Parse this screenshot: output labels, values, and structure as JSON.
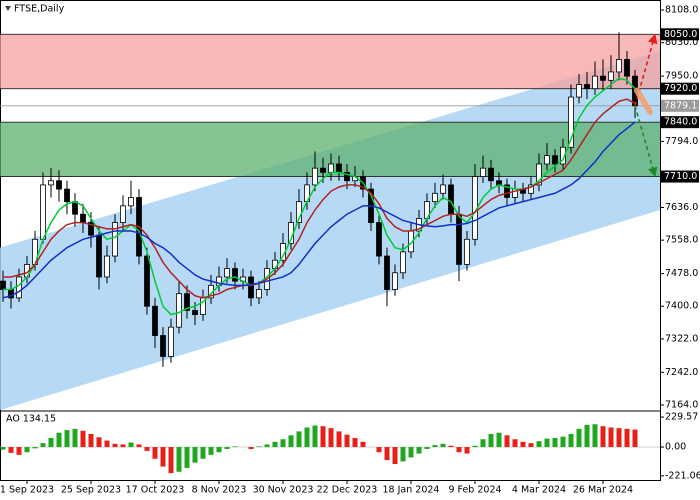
{
  "chart_data": {
    "type": "candlestick",
    "title": "FTSE,Daily",
    "categories": [
      null,
      null,
      null,
      "1 Sep 2023",
      null,
      null,
      null,
      null,
      null,
      null,
      null,
      "25 Sep 2023",
      null,
      null,
      null,
      null,
      null,
      null,
      null,
      "17 Oct 2023",
      null,
      null,
      null,
      null,
      null,
      null,
      null,
      "8 Nov 2023",
      null,
      null,
      null,
      null,
      null,
      null,
      null,
      "30 Nov 2023",
      null,
      null,
      null,
      null,
      null,
      null,
      null,
      "22 Dec 2023",
      null,
      null,
      null,
      null,
      null,
      null,
      null,
      "18 Jan 2024",
      null,
      null,
      null,
      null,
      null,
      null,
      null,
      "9 Feb 2024",
      null,
      null,
      null,
      null,
      null,
      null,
      null,
      "4 Mar 2024",
      null,
      null,
      null,
      null,
      null,
      null,
      null,
      "26 Mar 2024",
      null,
      null,
      null,
      null
    ],
    "ohlc": [
      [
        7460,
        7485,
        7410,
        7440
      ],
      [
        7440,
        7460,
        7395,
        7420
      ],
      [
        7420,
        7490,
        7410,
        7470
      ],
      [
        7470,
        7520,
        7455,
        7500
      ],
      [
        7500,
        7580,
        7485,
        7560
      ],
      [
        7560,
        7720,
        7550,
        7690
      ],
      [
        7690,
        7730,
        7660,
        7700
      ],
      [
        7700,
        7725,
        7650,
        7680
      ],
      [
        7680,
        7700,
        7620,
        7650
      ],
      [
        7650,
        7670,
        7590,
        7620
      ],
      [
        7620,
        7645,
        7575,
        7600
      ],
      [
        7600,
        7625,
        7540,
        7570
      ],
      [
        7570,
        7590,
        7440,
        7470
      ],
      [
        7470,
        7545,
        7455,
        7520
      ],
      [
        7520,
        7620,
        7505,
        7600
      ],
      [
        7600,
        7665,
        7580,
        7640
      ],
      [
        7640,
        7700,
        7620,
        7660
      ],
      [
        7660,
        7680,
        7500,
        7520
      ],
      [
        7520,
        7540,
        7380,
        7400
      ],
      [
        7400,
        7420,
        7300,
        7330
      ],
      [
        7330,
        7350,
        7255,
        7280
      ],
      [
        7280,
        7370,
        7265,
        7350
      ],
      [
        7350,
        7460,
        7335,
        7430
      ],
      [
        7430,
        7450,
        7370,
        7390
      ],
      [
        7390,
        7410,
        7355,
        7380
      ],
      [
        7380,
        7440,
        7365,
        7420
      ],
      [
        7420,
        7475,
        7405,
        7450
      ],
      [
        7450,
        7495,
        7435,
        7470
      ],
      [
        7470,
        7515,
        7455,
        7490
      ],
      [
        7490,
        7505,
        7440,
        7460
      ],
      [
        7460,
        7490,
        7440,
        7470
      ],
      [
        7470,
        7485,
        7400,
        7420
      ],
      [
        7420,
        7460,
        7405,
        7440
      ],
      [
        7440,
        7510,
        7425,
        7490
      ],
      [
        7490,
        7530,
        7475,
        7510
      ],
      [
        7510,
        7575,
        7495,
        7550
      ],
      [
        7550,
        7625,
        7535,
        7600
      ],
      [
        7600,
        7680,
        7585,
        7650
      ],
      [
        7650,
        7720,
        7630,
        7690
      ],
      [
        7690,
        7770,
        7675,
        7730
      ],
      [
        7730,
        7755,
        7695,
        7720
      ],
      [
        7720,
        7765,
        7700,
        7740
      ],
      [
        7740,
        7760,
        7700,
        7720
      ],
      [
        7720,
        7740,
        7680,
        7700
      ],
      [
        7700,
        7735,
        7685,
        7710
      ],
      [
        7710,
        7725,
        7660,
        7680
      ],
      [
        7680,
        7695,
        7580,
        7600
      ],
      [
        7600,
        7620,
        7500,
        7520
      ],
      [
        7520,
        7540,
        7400,
        7440
      ],
      [
        7440,
        7500,
        7425,
        7480
      ],
      [
        7480,
        7550,
        7465,
        7530
      ],
      [
        7530,
        7600,
        7515,
        7580
      ],
      [
        7580,
        7630,
        7565,
        7610
      ],
      [
        7610,
        7670,
        7595,
        7650
      ],
      [
        7650,
        7695,
        7635,
        7670
      ],
      [
        7670,
        7715,
        7655,
        7690
      ],
      [
        7690,
        7705,
        7600,
        7620
      ],
      [
        7620,
        7640,
        7460,
        7500
      ],
      [
        7500,
        7580,
        7485,
        7560
      ],
      [
        7560,
        7740,
        7545,
        7710
      ],
      [
        7710,
        7760,
        7695,
        7730
      ],
      [
        7730,
        7750,
        7680,
        7700
      ],
      [
        7700,
        7720,
        7670,
        7690
      ],
      [
        7690,
        7705,
        7640,
        7660
      ],
      [
        7660,
        7700,
        7645,
        7680
      ],
      [
        7680,
        7695,
        7650,
        7670
      ],
      [
        7670,
        7710,
        7655,
        7690
      ],
      [
        7690,
        7765,
        7675,
        7740
      ],
      [
        7740,
        7790,
        7725,
        7760
      ],
      [
        7760,
        7775,
        7720,
        7740
      ],
      [
        7740,
        7800,
        7725,
        7780
      ],
      [
        7780,
        7930,
        7765,
        7900
      ],
      [
        7900,
        7955,
        7885,
        7930
      ],
      [
        7930,
        7960,
        7895,
        7920
      ],
      [
        7920,
        7985,
        7905,
        7950
      ],
      [
        7950,
        7990,
        7915,
        7940
      ],
      [
        7940,
        8000,
        7920,
        7960
      ],
      [
        7960,
        8055,
        7940,
        7990
      ],
      [
        7990,
        8010,
        7930,
        7950
      ],
      [
        7950,
        7965,
        7850,
        7879.1
      ]
    ],
    "candle_color": "#000000",
    "ylim": [
      7152,
      8132
    ],
    "yticks": [
      {
        "value": 8108,
        "label": "8108.0"
      },
      {
        "value": 8030,
        "label": "8030.0"
      },
      {
        "value": 7950,
        "label": "7950.0"
      },
      {
        "value": 7794,
        "label": "7794.0"
      },
      {
        "value": 7636,
        "label": "7636.0"
      },
      {
        "value": 7558,
        "label": "7558.0"
      },
      {
        "value": 7478,
        "label": "7478.0"
      },
      {
        "value": 7400,
        "label": "7400.0"
      },
      {
        "value": 7322,
        "label": "7322.0"
      },
      {
        "value": 7242,
        "label": "7242.0"
      },
      {
        "value": 7164,
        "label": "7164.0"
      }
    ],
    "series": [
      {
        "color": "#00cc33",
        "values": [
          7440,
          7440,
          7450,
          7470,
          7500,
          7560,
          7600,
          7630,
          7645,
          7650,
          7640,
          7610,
          7580,
          7560,
          7565,
          7580,
          7595,
          7580,
          7530,
          7460,
          7400,
          7380,
          7385,
          7395,
          7400,
          7410,
          7430,
          7450,
          7465,
          7470,
          7460,
          7450,
          7455,
          7470,
          7490,
          7520,
          7560,
          7610,
          7650,
          7685,
          7705,
          7720,
          7720,
          7715,
          7710,
          7695,
          7665,
          7620,
          7570,
          7540,
          7535,
          7550,
          7575,
          7610,
          7640,
          7660,
          7650,
          7615,
          7600,
          7625,
          7660,
          7680,
          7690,
          7685,
          7680,
          7680,
          7685,
          7700,
          7720,
          7735,
          7750,
          7800,
          7850,
          7880,
          7900,
          7915,
          7930,
          7945,
          7940,
          7920
        ]
      },
      {
        "color": "#b22222",
        "values": [
          7470,
          7470,
          7475,
          7480,
          7500,
          7530,
          7560,
          7580,
          7595,
          7600,
          7600,
          7595,
          7590,
          7585,
          7585,
          7590,
          7595,
          7590,
          7570,
          7540,
          7505,
          7480,
          7460,
          7440,
          7425,
          7420,
          7425,
          7430,
          7440,
          7445,
          7450,
          7450,
          7455,
          7465,
          7480,
          7500,
          7530,
          7560,
          7600,
          7630,
          7655,
          7675,
          7685,
          7690,
          7690,
          7685,
          7670,
          7645,
          7610,
          7590,
          7580,
          7580,
          7585,
          7595,
          7605,
          7615,
          7620,
          7620,
          7615,
          7625,
          7640,
          7655,
          7665,
          7670,
          7675,
          7680,
          7685,
          7695,
          7705,
          7715,
          7725,
          7750,
          7780,
          7810,
          7840,
          7860,
          7875,
          7890,
          7895,
          7885
        ]
      },
      {
        "color": "#1030c8",
        "values": [
          7420,
          7425,
          7435,
          7450,
          7470,
          7490,
          7510,
          7525,
          7540,
          7550,
          7560,
          7565,
          7570,
          7575,
          7580,
          7580,
          7580,
          7575,
          7565,
          7550,
          7540,
          7525,
          7505,
          7490,
          7475,
          7465,
          7460,
          7455,
          7452,
          7450,
          7450,
          7452,
          7455,
          7460,
          7465,
          7470,
          7480,
          7500,
          7525,
          7550,
          7570,
          7590,
          7605,
          7620,
          7630,
          7640,
          7640,
          7635,
          7625,
          7615,
          7605,
          7600,
          7595,
          7592,
          7590,
          7592,
          7595,
          7595,
          7598,
          7605,
          7615,
          7625,
          7635,
          7640,
          7645,
          7650,
          7655,
          7660,
          7665,
          7670,
          7680,
          7690,
          7705,
          7725,
          7745,
          7770,
          7790,
          7810,
          7825,
          7840
        ]
      }
    ],
    "channel": {
      "color": "#a9d3f5",
      "upper": [
        7540,
        8010
      ],
      "lower": [
        7152,
        7630
      ]
    },
    "zones": [
      {
        "from": 7920,
        "to": 8050,
        "color": "#f5a0a0"
      },
      {
        "from": 7710,
        "to": 7840,
        "color": "#5fb070"
      }
    ],
    "levels": [
      {
        "value": 8050,
        "label": "8050.0",
        "color": "#000000"
      },
      {
        "value": 7920,
        "label": "7920.0",
        "color": "#000000"
      },
      {
        "value": 7879.1,
        "label": "7879.1",
        "color": "#9a9a9a"
      },
      {
        "value": 7840,
        "label": "7840.0",
        "color": "#000000"
      },
      {
        "value": 7710,
        "label": "7710.0",
        "color": "#000000"
      }
    ],
    "indicator": {
      "type": "histogram",
      "title": "AO 134.15",
      "up_color": "#1fa81f",
      "down_color": "#e8201a",
      "ylim": [
        -253,
        269
      ],
      "yticks": [
        229.57,
        {
          "value": 0,
          "label": "0.00"
        },
        -221.06
      ],
      "values": [
        -20,
        -45,
        -60,
        -40,
        -10,
        30,
        70,
        110,
        130,
        140,
        125,
        100,
        75,
        50,
        25,
        20,
        35,
        20,
        -30,
        -90,
        -150,
        -200,
        -190,
        -160,
        -120,
        -90,
        -60,
        -40,
        -15,
        5,
        0,
        -15,
        5,
        20,
        40,
        60,
        90,
        120,
        150,
        165,
        160,
        145,
        120,
        95,
        70,
        40,
        0,
        -40,
        -100,
        -130,
        -110,
        -80,
        -50,
        -15,
        15,
        25,
        10,
        -40,
        -50,
        10,
        60,
        100,
        110,
        90,
        60,
        40,
        30,
        45,
        65,
        70,
        80,
        100,
        140,
        170,
        175,
        160,
        150,
        145,
        140,
        134.15
      ]
    }
  }
}
